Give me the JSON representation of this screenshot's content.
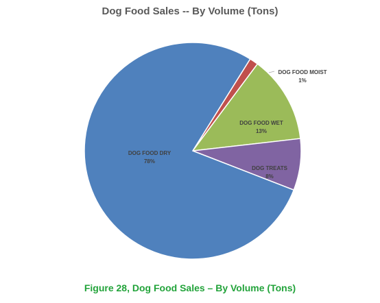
{
  "chart_data": {
    "type": "pie",
    "title": "Dog Food Sales -- By Volume (Tons)",
    "slices": [
      {
        "label": "DOG FOOD DRY",
        "percent_label": "78%",
        "value": 78,
        "color": "#4f81bd"
      },
      {
        "label": "DOG FOOD MOIST",
        "percent_label": "1%",
        "value": 1.3,
        "color": "#c0504d"
      },
      {
        "label": "DOG FOOD WET",
        "percent_label": "13%",
        "value": 13,
        "color": "#9bbb59"
      },
      {
        "label": "DOG TREATS",
        "percent_label": "8%",
        "value": 7.7,
        "color": "#8064a2"
      }
    ],
    "legend": "none"
  },
  "caption": "Figure 28, Dog Food Sales – By Volume (Tons)"
}
